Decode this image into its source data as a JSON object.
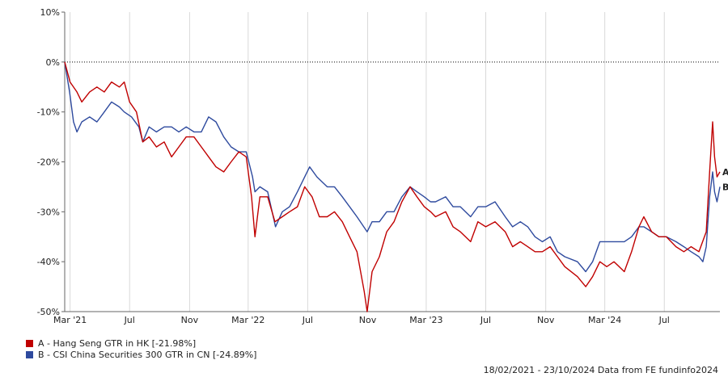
{
  "chart_data": {
    "type": "line",
    "title": "",
    "xlabel": "",
    "ylabel": "",
    "ylim": [
      -50,
      10
    ],
    "xlim": [
      "2021-02-18",
      "2024-10-23"
    ],
    "y_ticks": [
      10,
      0,
      -10,
      -20,
      -30,
      -40,
      -50
    ],
    "y_tick_labels": [
      "10%",
      "0%",
      "-10%",
      "-20%",
      "-30%",
      "-40%",
      "-50%"
    ],
    "x_ticks": [
      {
        "date": "2021-03-01",
        "label": "Mar '21"
      },
      {
        "date": "2021-07-01",
        "label": "Jul"
      },
      {
        "date": "2021-11-01",
        "label": "Nov"
      },
      {
        "date": "2022-03-01",
        "label": "Mar '22"
      },
      {
        "date": "2022-07-01",
        "label": "Jul"
      },
      {
        "date": "2022-11-01",
        "label": "Nov"
      },
      {
        "date": "2023-03-01",
        "label": "Mar '23"
      },
      {
        "date": "2023-07-01",
        "label": "Jul"
      },
      {
        "date": "2023-11-01",
        "label": "Nov"
      },
      {
        "date": "2024-03-01",
        "label": "Mar '24"
      },
      {
        "date": "2024-07-01",
        "label": "Jul"
      }
    ],
    "grid": "vertical",
    "zero_line": "dotted",
    "legend_position": "bottom-left",
    "series": [
      {
        "name": "A - Hang Seng GTR in HK [-21.98%]",
        "end_marker": "A",
        "color": "#c00000",
        "points": [
          [
            "2021-02-18",
            0
          ],
          [
            "2021-03-01",
            -4
          ],
          [
            "2021-03-15",
            -6
          ],
          [
            "2021-03-25",
            -8
          ],
          [
            "2021-04-10",
            -6
          ],
          [
            "2021-04-25",
            -5
          ],
          [
            "2021-05-10",
            -6
          ],
          [
            "2021-05-25",
            -4
          ],
          [
            "2021-06-10",
            -5
          ],
          [
            "2021-06-20",
            -4
          ],
          [
            "2021-07-01",
            -8
          ],
          [
            "2021-07-15",
            -10
          ],
          [
            "2021-07-28",
            -16
          ],
          [
            "2021-08-10",
            -15
          ],
          [
            "2021-08-25",
            -17
          ],
          [
            "2021-09-10",
            -16
          ],
          [
            "2021-09-25",
            -19
          ],
          [
            "2021-10-10",
            -17
          ],
          [
            "2021-10-25",
            -15
          ],
          [
            "2021-11-10",
            -15
          ],
          [
            "2021-11-25",
            -17
          ],
          [
            "2021-12-10",
            -19
          ],
          [
            "2021-12-25",
            -21
          ],
          [
            "2022-01-10",
            -22
          ],
          [
            "2022-01-25",
            -20
          ],
          [
            "2022-02-10",
            -18
          ],
          [
            "2022-02-25",
            -19
          ],
          [
            "2022-03-08",
            -27
          ],
          [
            "2022-03-15",
            -35
          ],
          [
            "2022-03-25",
            -27
          ],
          [
            "2022-04-10",
            -27
          ],
          [
            "2022-04-25",
            -32
          ],
          [
            "2022-05-10",
            -31
          ],
          [
            "2022-05-25",
            -30
          ],
          [
            "2022-06-10",
            -29
          ],
          [
            "2022-06-25",
            -25
          ],
          [
            "2022-07-10",
            -27
          ],
          [
            "2022-07-25",
            -31
          ],
          [
            "2022-08-10",
            -31
          ],
          [
            "2022-08-25",
            -30
          ],
          [
            "2022-09-10",
            -32
          ],
          [
            "2022-09-25",
            -35
          ],
          [
            "2022-10-10",
            -38
          ],
          [
            "2022-10-25",
            -46
          ],
          [
            "2022-10-31",
            -50
          ],
          [
            "2022-11-10",
            -42
          ],
          [
            "2022-11-25",
            -39
          ],
          [
            "2022-12-10",
            -34
          ],
          [
            "2022-12-25",
            -32
          ],
          [
            "2023-01-10",
            -28
          ],
          [
            "2023-01-27",
            -25
          ],
          [
            "2023-02-10",
            -27
          ],
          [
            "2023-02-25",
            -29
          ],
          [
            "2023-03-10",
            -30
          ],
          [
            "2023-03-20",
            -31
          ],
          [
            "2023-04-10",
            -30
          ],
          [
            "2023-04-25",
            -33
          ],
          [
            "2023-05-10",
            -34
          ],
          [
            "2023-05-31",
            -36
          ],
          [
            "2023-06-15",
            -32
          ],
          [
            "2023-07-01",
            -33
          ],
          [
            "2023-07-20",
            -32
          ],
          [
            "2023-08-10",
            -34
          ],
          [
            "2023-08-25",
            -37
          ],
          [
            "2023-09-10",
            -36
          ],
          [
            "2023-09-25",
            -37
          ],
          [
            "2023-10-10",
            -38
          ],
          [
            "2023-10-25",
            -38
          ],
          [
            "2023-11-10",
            -37
          ],
          [
            "2023-11-25",
            -39
          ],
          [
            "2023-12-10",
            -41
          ],
          [
            "2024-01-05",
            -43
          ],
          [
            "2024-01-22",
            -45
          ],
          [
            "2024-02-05",
            -43
          ],
          [
            "2024-02-20",
            -40
          ],
          [
            "2024-03-05",
            -41
          ],
          [
            "2024-03-20",
            -40
          ],
          [
            "2024-04-10",
            -42
          ],
          [
            "2024-04-25",
            -38
          ],
          [
            "2024-05-10",
            -33
          ],
          [
            "2024-05-20",
            -31
          ],
          [
            "2024-06-05",
            -34
          ],
          [
            "2024-06-20",
            -35
          ],
          [
            "2024-07-05",
            -35
          ],
          [
            "2024-07-25",
            -37
          ],
          [
            "2024-08-10",
            -38
          ],
          [
            "2024-08-25",
            -37
          ],
          [
            "2024-09-10",
            -38
          ],
          [
            "2024-09-25",
            -34
          ],
          [
            "2024-10-02",
            -22
          ],
          [
            "2024-10-08",
            -12
          ],
          [
            "2024-10-12",
            -19
          ],
          [
            "2024-10-17",
            -23
          ],
          [
            "2024-10-23",
            -22
          ]
        ]
      },
      {
        "name": "B - CSI China Securities 300 GTR in CN [-24.89%]",
        "end_marker": "B",
        "color": "#2e4a9e",
        "points": [
          [
            "2021-02-18",
            0
          ],
          [
            "2021-02-28",
            -6
          ],
          [
            "2021-03-08",
            -12
          ],
          [
            "2021-03-15",
            -14
          ],
          [
            "2021-03-25",
            -12
          ],
          [
            "2021-04-10",
            -11
          ],
          [
            "2021-04-25",
            -12
          ],
          [
            "2021-05-10",
            -10
          ],
          [
            "2021-05-25",
            -8
          ],
          [
            "2021-06-10",
            -9
          ],
          [
            "2021-06-20",
            -10
          ],
          [
            "2021-07-05",
            -11
          ],
          [
            "2021-07-20",
            -13
          ],
          [
            "2021-07-28",
            -16
          ],
          [
            "2021-08-10",
            -13
          ],
          [
            "2021-08-25",
            -14
          ],
          [
            "2021-09-10",
            -13
          ],
          [
            "2021-09-25",
            -13
          ],
          [
            "2021-10-10",
            -14
          ],
          [
            "2021-10-25",
            -13
          ],
          [
            "2021-11-10",
            -14
          ],
          [
            "2021-11-25",
            -14
          ],
          [
            "2021-12-10",
            -11
          ],
          [
            "2021-12-25",
            -12
          ],
          [
            "2022-01-10",
            -15
          ],
          [
            "2022-01-25",
            -17
          ],
          [
            "2022-02-10",
            -18
          ],
          [
            "2022-02-25",
            -18
          ],
          [
            "2022-03-10",
            -23
          ],
          [
            "2022-03-15",
            -26
          ],
          [
            "2022-03-25",
            -25
          ],
          [
            "2022-04-10",
            -26
          ],
          [
            "2022-04-26",
            -33
          ],
          [
            "2022-05-10",
            -30
          ],
          [
            "2022-05-25",
            -29
          ],
          [
            "2022-06-10",
            -26
          ],
          [
            "2022-06-25",
            -23
          ],
          [
            "2022-07-05",
            -21
          ],
          [
            "2022-07-20",
            -23
          ],
          [
            "2022-08-10",
            -25
          ],
          [
            "2022-08-25",
            -25
          ],
          [
            "2022-09-10",
            -27
          ],
          [
            "2022-09-25",
            -29
          ],
          [
            "2022-10-10",
            -31
          ],
          [
            "2022-10-31",
            -34
          ],
          [
            "2022-11-10",
            -32
          ],
          [
            "2022-11-25",
            -32
          ],
          [
            "2022-12-10",
            -30
          ],
          [
            "2022-12-25",
            -30
          ],
          [
            "2023-01-10",
            -27
          ],
          [
            "2023-01-27",
            -25
          ],
          [
            "2023-02-10",
            -26
          ],
          [
            "2023-02-25",
            -27
          ],
          [
            "2023-03-10",
            -28
          ],
          [
            "2023-03-20",
            -28
          ],
          [
            "2023-04-10",
            -27
          ],
          [
            "2023-04-25",
            -29
          ],
          [
            "2023-05-10",
            -29
          ],
          [
            "2023-05-31",
            -31
          ],
          [
            "2023-06-15",
            -29
          ],
          [
            "2023-07-01",
            -29
          ],
          [
            "2023-07-20",
            -28
          ],
          [
            "2023-08-10",
            -31
          ],
          [
            "2023-08-25",
            -33
          ],
          [
            "2023-09-10",
            -32
          ],
          [
            "2023-09-25",
            -33
          ],
          [
            "2023-10-10",
            -35
          ],
          [
            "2023-10-25",
            -36
          ],
          [
            "2023-11-10",
            -35
          ],
          [
            "2023-11-25",
            -38
          ],
          [
            "2023-12-10",
            -39
          ],
          [
            "2024-01-05",
            -40
          ],
          [
            "2024-01-22",
            -42
          ],
          [
            "2024-02-05",
            -40
          ],
          [
            "2024-02-20",
            -36
          ],
          [
            "2024-03-05",
            -36
          ],
          [
            "2024-03-20",
            -36
          ],
          [
            "2024-04-10",
            -36
          ],
          [
            "2024-04-25",
            -35
          ],
          [
            "2024-05-10",
            -33
          ],
          [
            "2024-05-20",
            -33
          ],
          [
            "2024-06-05",
            -34
          ],
          [
            "2024-06-20",
            -35
          ],
          [
            "2024-07-05",
            -35
          ],
          [
            "2024-07-25",
            -36
          ],
          [
            "2024-08-10",
            -37
          ],
          [
            "2024-08-25",
            -38
          ],
          [
            "2024-09-10",
            -39
          ],
          [
            "2024-09-18",
            -40
          ],
          [
            "2024-09-25",
            -37
          ],
          [
            "2024-10-02",
            -27
          ],
          [
            "2024-10-08",
            -22
          ],
          [
            "2024-10-12",
            -26
          ],
          [
            "2024-10-17",
            -28
          ],
          [
            "2024-10-23",
            -25
          ]
        ]
      }
    ]
  },
  "footer": {
    "text": "18/02/2021 - 23/10/2024 Data from FE fundinfo2024"
  }
}
